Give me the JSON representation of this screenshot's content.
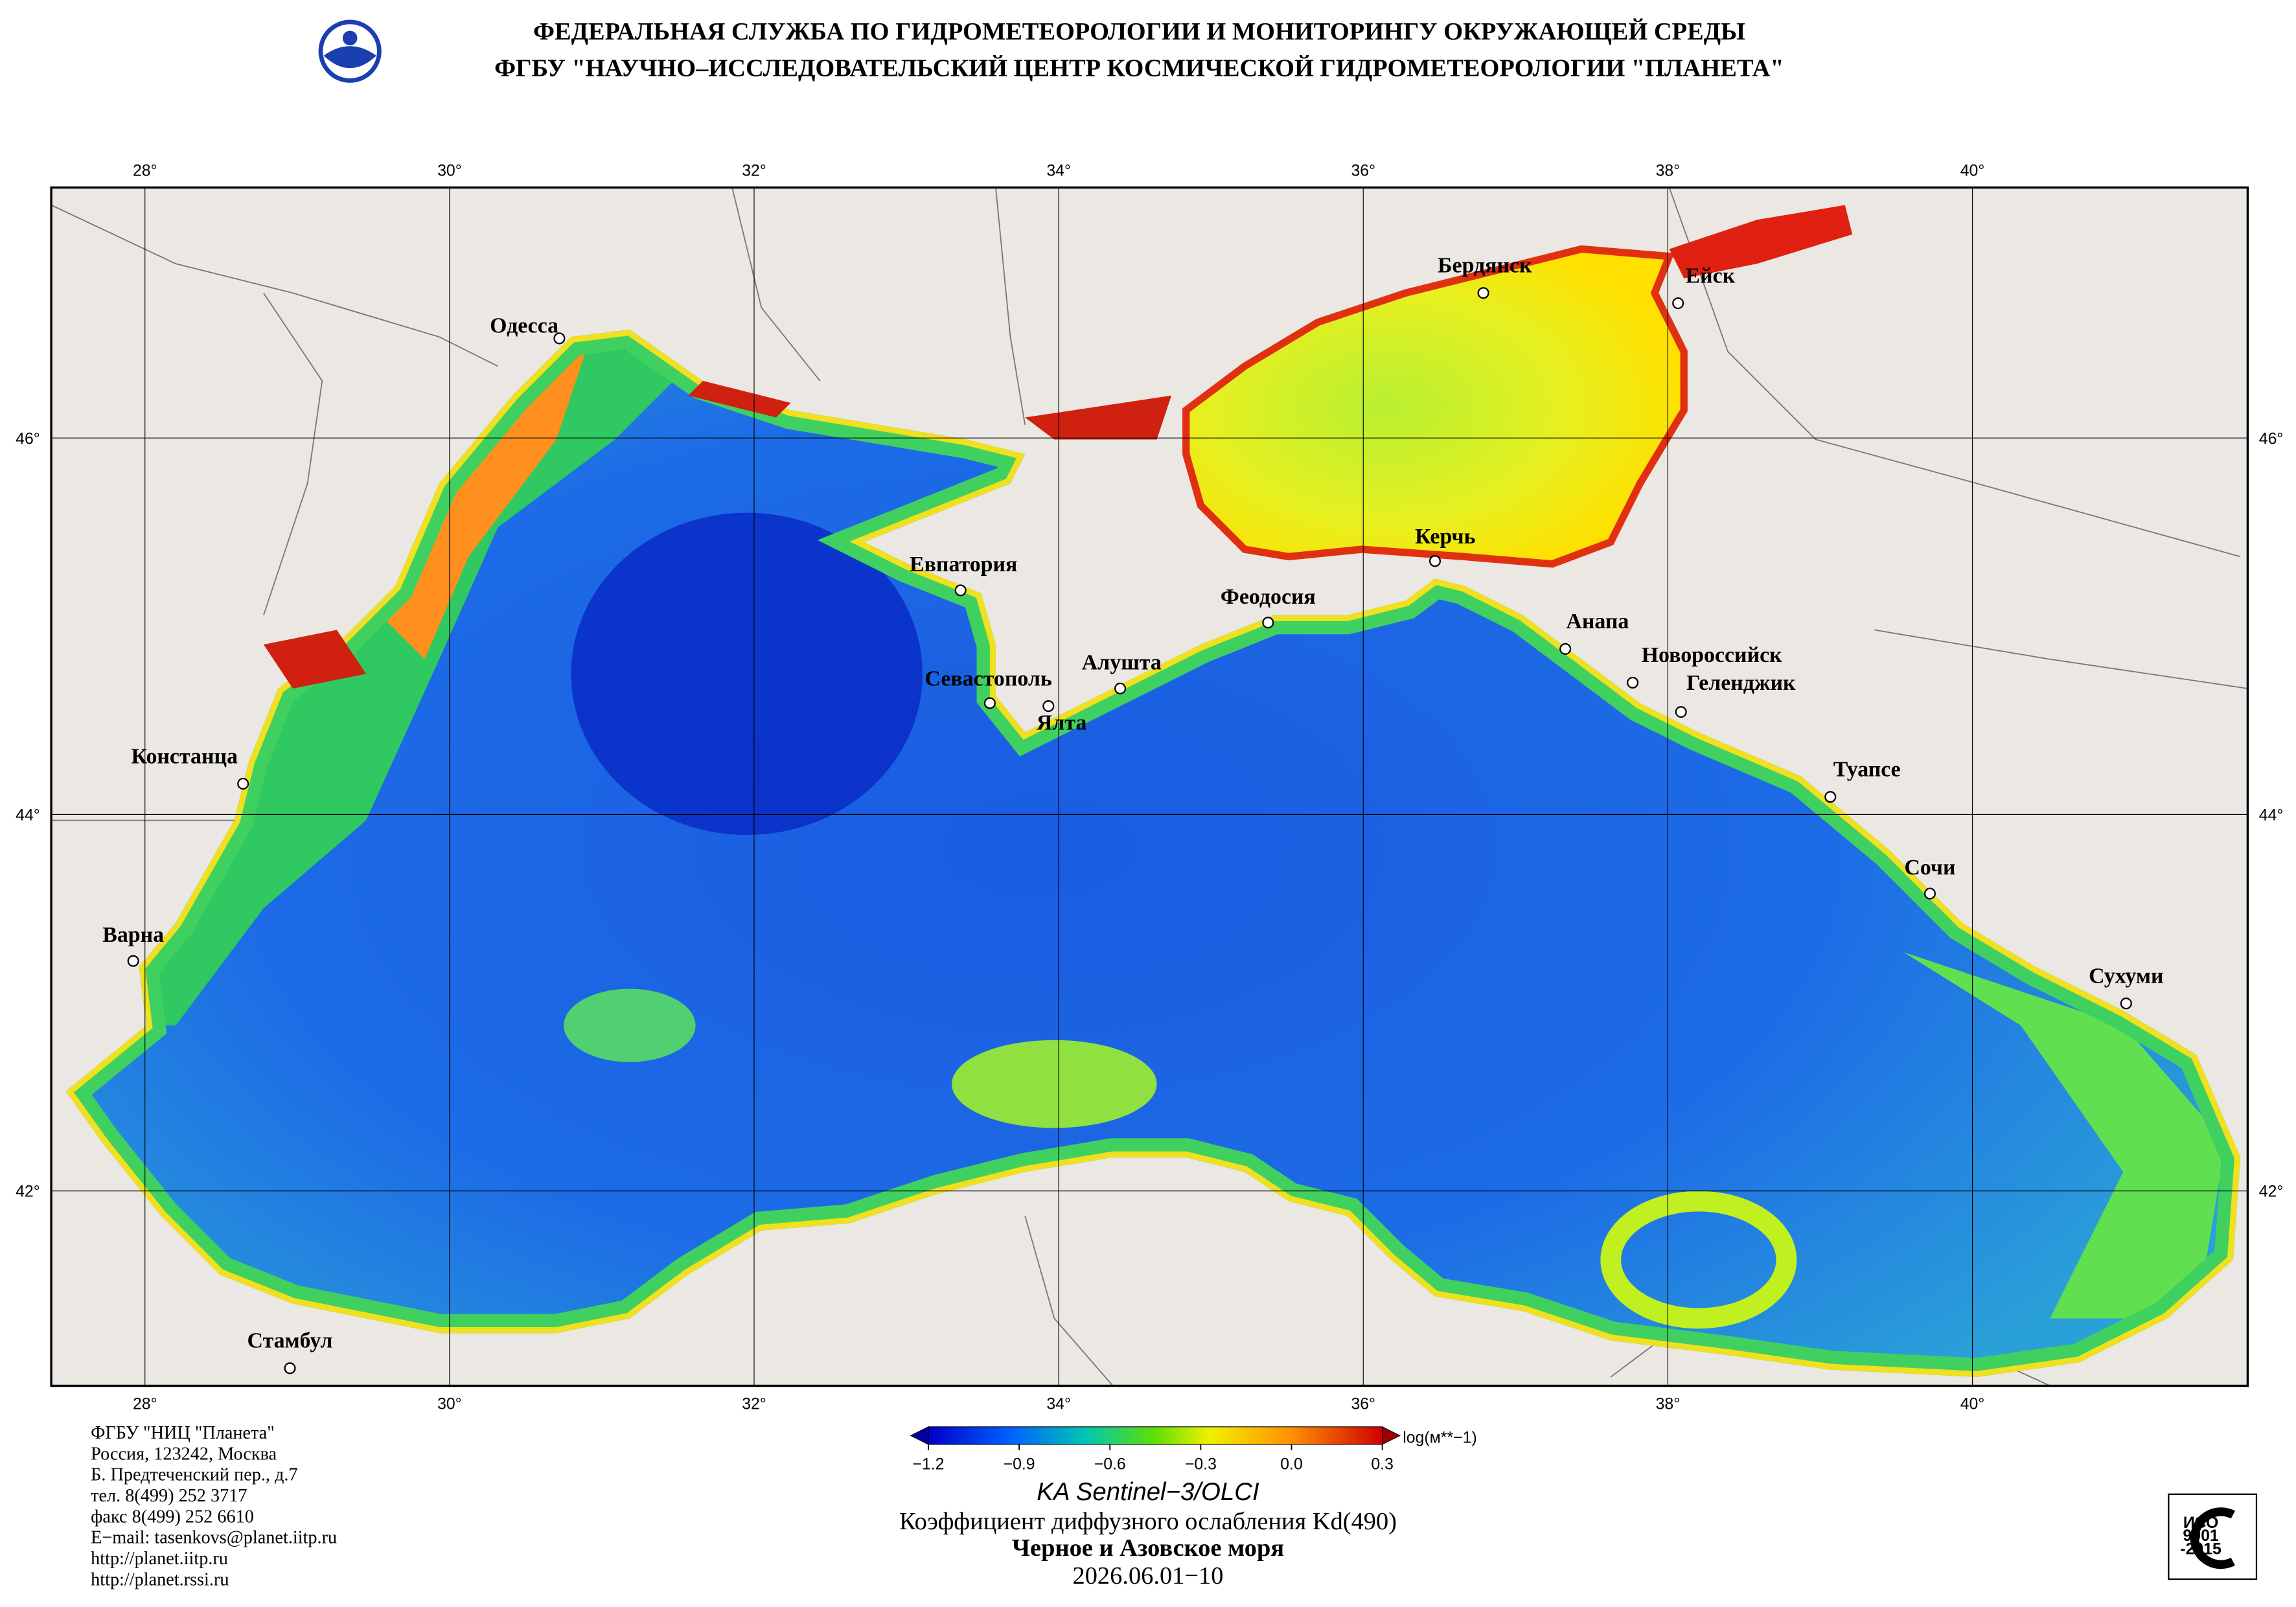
{
  "header": {
    "lines": [
      "ФЕДЕРАЛЬНАЯ СЛУЖБА ПО ГИДРОМЕТЕОРОЛОГИИ И МОНИТОРИНГУ ОКРУЖАЮЩЕЙ СРЕДЫ",
      "ФГБУ \"НАУЧНО–ИССЛЕДОВАТЕЛЬСКИЙ ЦЕНТР КОСМИЧЕСКОЙ ГИДРОМЕТЕОРОЛОГИИ \"ПЛАНЕТА\""
    ]
  },
  "map": {
    "xticks": [
      {
        "value": 28,
        "label": "28°"
      },
      {
        "value": 30,
        "label": "30°"
      },
      {
        "value": 32,
        "label": "32°"
      },
      {
        "value": 34,
        "label": "34°"
      },
      {
        "value": 36,
        "label": "36°"
      },
      {
        "value": 38,
        "label": "38°"
      },
      {
        "value": 40,
        "label": "40°"
      }
    ],
    "yticks": [
      {
        "value": 42,
        "label": "42°"
      },
      {
        "value": 44,
        "label": "44°"
      },
      {
        "value": 46,
        "label": "46°"
      }
    ],
    "cities": [
      "Одесса",
      "Евпатория",
      "Севастополь",
      "Ялта",
      "Алушта",
      "Феодосия",
      "Керчь",
      "Бердянск",
      "Ейск",
      "Анапа",
      "Новороссийск",
      "Геленджик",
      "Туапсе",
      "Сочи",
      "Сухуми",
      "Констанца",
      "Варна",
      "Стамбул"
    ]
  },
  "colorbar": {
    "lim": [
      -1.2,
      0.3
    ],
    "ticks": [
      {
        "value": -1.2,
        "label": "−1.2"
      },
      {
        "value": -0.9,
        "label": "−0.9"
      },
      {
        "value": -0.6,
        "label": "−0.6"
      },
      {
        "value": -0.3,
        "label": "−0.3"
      },
      {
        "value": 0,
        "label": "0.0"
      },
      0.3
    ],
    "unit": "log(м**−1)"
  },
  "caption": {
    "satellite": "KA Sentinel−3/OLCI",
    "product": "Коэффициент диффузного ослабления Kd(490)",
    "region": "Черное и Азовское моря",
    "date": "2026.06.01−10"
  },
  "footer": {
    "lines": [
      "ФГБУ \"НИЦ \"Планета\"",
      "Россия, 123242, Москва",
      "Б. Предтеченский пер., д.7",
      "тел. 8(499) 252 3717",
      "факс 8(499) 252 6610",
      "E−mail: tasenkovs@planet.iitp.ru",
      "http://planet.iitp.ru",
      "http://planet.rssi.ru"
    ]
  },
  "certificate": {
    "lines": [
      "ИСО",
      "9001",
      "-2015"
    ]
  }
}
